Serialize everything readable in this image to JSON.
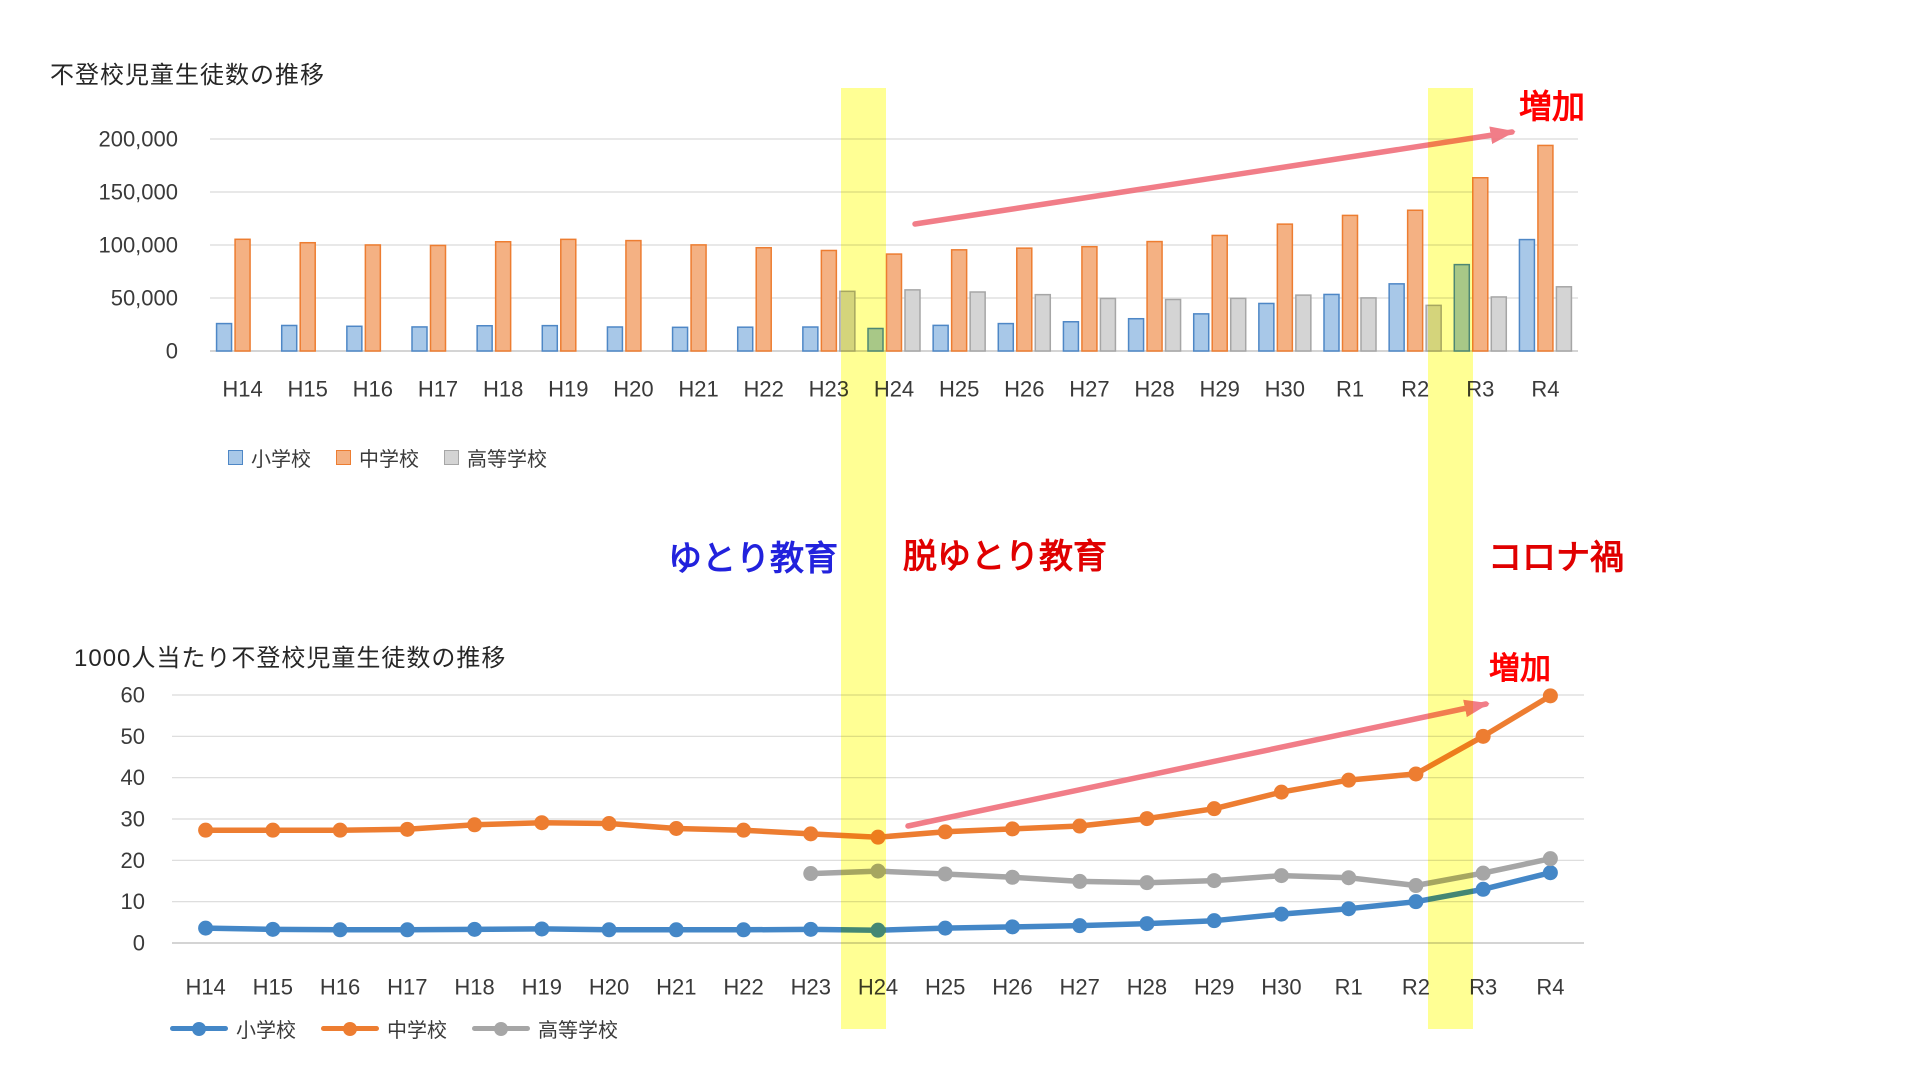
{
  "chart_data": [
    {
      "id": "futoko-count",
      "type": "bar",
      "title": "不登校児童生徒数の推移",
      "categories": [
        "H14",
        "H15",
        "H16",
        "H17",
        "H18",
        "H19",
        "H20",
        "H21",
        "H22",
        "H23",
        "H24",
        "H25",
        "H26",
        "H27",
        "H28",
        "H29",
        "H30",
        "R1",
        "R2",
        "R3",
        "R4"
      ],
      "y_axis": {
        "ticks": [
          {
            "value": 0,
            "label": "0"
          },
          {
            "value": 50000,
            "label": "50,000"
          },
          {
            "value": 100000,
            "label": "100,000"
          },
          {
            "value": 150000,
            "label": "150,000"
          },
          {
            "value": 200000,
            "label": "200,000"
          }
        ],
        "ylim": [
          0,
          200000
        ],
        "grid": true
      },
      "legend_position": "bottom-left",
      "series": [
        {
          "key": "elementary",
          "name": "小学校",
          "fill": "#A8C8E8",
          "stroke": "#4E87C6",
          "values": [
            25869,
            24077,
            23318,
            22709,
            23825,
            23927,
            22652,
            22327,
            22463,
            22622,
            21243,
            24175,
            25864,
            27583,
            30448,
            35032,
            44841,
            53350,
            63350,
            81498,
            105112
          ]
        },
        {
          "key": "junior-high",
          "name": "中学校",
          "fill": "#F4B183",
          "stroke": "#ED7D31",
          "values": [
            105383,
            102149,
            100040,
            99578,
            103069,
            105328,
            104153,
            100105,
            97428,
            94836,
            91446,
            95442,
            97033,
            98408,
            103235,
            108999,
            119687,
            127922,
            132777,
            163442,
            193936
          ]
        },
        {
          "key": "high-school",
          "name": "高等学校",
          "fill": "#D4D4D4",
          "stroke": "#A6A6A6",
          "values": [
            null,
            null,
            null,
            null,
            null,
            null,
            null,
            null,
            null,
            56292,
            57664,
            55657,
            53156,
            49563,
            48565,
            49643,
            52723,
            50100,
            43051,
            50985,
            60575
          ]
        }
      ]
    },
    {
      "id": "futoko-per-1000",
      "type": "line",
      "title": "1000人当たり不登校児童生徒数の推移",
      "categories": [
        "H14",
        "H15",
        "H16",
        "H17",
        "H18",
        "H19",
        "H20",
        "H21",
        "H22",
        "H23",
        "H24",
        "H25",
        "H26",
        "H27",
        "H28",
        "H29",
        "H30",
        "R1",
        "R2",
        "R3",
        "R4"
      ],
      "y_axis": {
        "ticks": [
          {
            "value": 0,
            "label": "0"
          },
          {
            "value": 10,
            "label": "10"
          },
          {
            "value": 20,
            "label": "20"
          },
          {
            "value": 30,
            "label": "30"
          },
          {
            "value": 40,
            "label": "40"
          },
          {
            "value": 50,
            "label": "50"
          },
          {
            "value": 60,
            "label": "60"
          }
        ],
        "ylim": [
          0,
          60
        ],
        "grid": true
      },
      "legend_position": "bottom-left",
      "series": [
        {
          "key": "elementary",
          "name": "小学校",
          "color": "#4487C7",
          "values": [
            3.6,
            3.3,
            3.2,
            3.2,
            3.3,
            3.4,
            3.2,
            3.2,
            3.2,
            3.3,
            3.1,
            3.6,
            3.9,
            4.2,
            4.7,
            5.4,
            7.0,
            8.3,
            10.0,
            13.0,
            17.0
          ]
        },
        {
          "key": "junior-high",
          "name": "中学校",
          "color": "#ED7D31",
          "values": [
            27.3,
            27.3,
            27.3,
            27.5,
            28.6,
            29.1,
            28.9,
            27.7,
            27.3,
            26.4,
            25.6,
            26.9,
            27.6,
            28.3,
            30.1,
            32.5,
            36.5,
            39.4,
            40.9,
            50.0,
            59.8
          ]
        },
        {
          "key": "high-school",
          "name": "高等学校",
          "color": "#A6A6A6",
          "values": [
            null,
            null,
            null,
            null,
            null,
            null,
            null,
            null,
            null,
            16.8,
            17.4,
            16.7,
            15.9,
            14.9,
            14.6,
            15.1,
            16.3,
            15.8,
            13.9,
            16.9,
            20.4
          ]
        }
      ]
    }
  ],
  "annotations": {
    "yutori": {
      "text": "ゆとり教育",
      "color": "#2222DD"
    },
    "datsuyutori": {
      "text": "脱ゆとり教育",
      "color": "#E00000"
    },
    "corona": {
      "text": "コロナ禍",
      "color": "#E00000"
    },
    "increase_top": {
      "text": "増加",
      "color": "#FF0000"
    },
    "increase_bottom": {
      "text": "増加",
      "color": "#FF0000"
    }
  },
  "highlights": {
    "band_color": "rgba(255,255,0,0.42)",
    "bands": [
      {
        "between": "H23-H24"
      },
      {
        "between": "R2-R3"
      }
    ]
  },
  "arrows": {
    "color": "#F0707C"
  }
}
